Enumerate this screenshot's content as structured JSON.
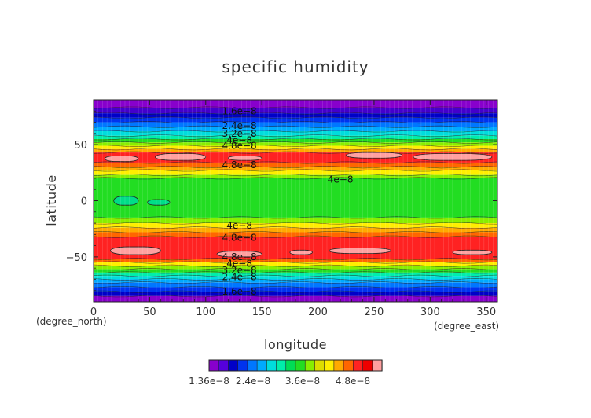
{
  "chart_data": {
    "type": "heatmap",
    "title": "specific humidity",
    "xlabel": "longitude",
    "ylabel": "latitude",
    "x_unit": "(degree_east)",
    "y_unit": "(degree_north)",
    "xlim": [
      0,
      360
    ],
    "ylim": [
      -90,
      90
    ],
    "x_ticks": [
      0,
      50,
      100,
      150,
      200,
      250,
      300,
      350
    ],
    "y_ticks": [
      50,
      0,
      -50
    ],
    "x_tick_labels": [
      "0",
      "50",
      "100",
      "150",
      "200",
      "250",
      "300",
      "350"
    ],
    "y_tick_labels": [
      "50",
      "0",
      "−50"
    ],
    "colorbar": {
      "colors": [
        "#8800cc",
        "#5500dd",
        "#0000c8",
        "#0033ee",
        "#0077ff",
        "#00aaff",
        "#00dddd",
        "#00eeaa",
        "#00dd55",
        "#22dd22",
        "#88ee00",
        "#dddd00",
        "#ffee00",
        "#ffaa00",
        "#ff6600",
        "#ff2222",
        "#ee0000",
        "#ffa0a0"
      ],
      "tick_labels": [
        "1.36e−8",
        "2.4e−8",
        "3.6e−8",
        "4.8e−8"
      ]
    },
    "bands": [
      {
        "lat_top": 90,
        "lat_bottom": 83,
        "color": "#8800cc"
      },
      {
        "lat_top": 83,
        "lat_bottom": 78,
        "color": "#4400cc"
      },
      {
        "lat_top": 78,
        "lat_bottom": 74,
        "color": "#0000c8"
      },
      {
        "lat_top": 74,
        "lat_bottom": 70,
        "color": "#0033ee"
      },
      {
        "lat_top": 70,
        "lat_bottom": 66,
        "color": "#0077ff"
      },
      {
        "lat_top": 66,
        "lat_bottom": 62,
        "color": "#00aaff"
      },
      {
        "lat_top": 62,
        "lat_bottom": 58,
        "color": "#00dddd"
      },
      {
        "lat_top": 58,
        "lat_bottom": 55,
        "color": "#00eeaa"
      },
      {
        "lat_top": 55,
        "lat_bottom": 52,
        "color": "#22dd22"
      },
      {
        "lat_top": 52,
        "lat_bottom": 49,
        "color": "#88ee00"
      },
      {
        "lat_top": 49,
        "lat_bottom": 46,
        "color": "#ffee00"
      },
      {
        "lat_top": 46,
        "lat_bottom": 43,
        "color": "#ffaa00"
      },
      {
        "lat_top": 43,
        "lat_bottom": 34,
        "color": "#ff2222"
      },
      {
        "lat_top": 34,
        "lat_bottom": 30,
        "color": "#ff6600"
      },
      {
        "lat_top": 30,
        "lat_bottom": 27,
        "color": "#ffaa00"
      },
      {
        "lat_top": 27,
        "lat_bottom": 23,
        "color": "#ffee00"
      },
      {
        "lat_top": 23,
        "lat_bottom": 20,
        "color": "#88ee00"
      },
      {
        "lat_top": 20,
        "lat_bottom": -15,
        "color": "#22dd22"
      },
      {
        "lat_top": -15,
        "lat_bottom": -20,
        "color": "#88ee00"
      },
      {
        "lat_top": -20,
        "lat_bottom": -24,
        "color": "#ffee00"
      },
      {
        "lat_top": -24,
        "lat_bottom": -28,
        "color": "#ffaa00"
      },
      {
        "lat_top": -28,
        "lat_bottom": -32,
        "color": "#ff6600"
      },
      {
        "lat_top": -32,
        "lat_bottom": -52,
        "color": "#ff2222"
      },
      {
        "lat_top": -52,
        "lat_bottom": -55,
        "color": "#ff6600"
      },
      {
        "lat_top": -55,
        "lat_bottom": -58,
        "color": "#ffee00"
      },
      {
        "lat_top": -58,
        "lat_bottom": -61,
        "color": "#88ee00"
      },
      {
        "lat_top": -61,
        "lat_bottom": -64,
        "color": "#22dd22"
      },
      {
        "lat_top": -64,
        "lat_bottom": -67,
        "color": "#00eeaa"
      },
      {
        "lat_top": -67,
        "lat_bottom": -70,
        "color": "#00dddd"
      },
      {
        "lat_top": -70,
        "lat_bottom": -73,
        "color": "#00aaff"
      },
      {
        "lat_top": -73,
        "lat_bottom": -77,
        "color": "#0077ff"
      },
      {
        "lat_top": -77,
        "lat_bottom": -81,
        "color": "#0033ee"
      },
      {
        "lat_top": -81,
        "lat_bottom": -85,
        "color": "#0000c8"
      },
      {
        "lat_top": -85,
        "lat_bottom": -90,
        "color": "#8800cc"
      }
    ],
    "patches": [
      {
        "lon_min": 10,
        "lon_max": 40,
        "lat_min": 35,
        "lat_max": 40,
        "color": "#ffa0a0"
      },
      {
        "lon_min": 55,
        "lon_max": 100,
        "lat_min": 36,
        "lat_max": 42,
        "color": "#ffa0a0"
      },
      {
        "lon_min": 120,
        "lon_max": 150,
        "lat_min": 36,
        "lat_max": 40,
        "color": "#ffa0a0"
      },
      {
        "lon_min": 225,
        "lon_max": 275,
        "lat_min": 38,
        "lat_max": 43,
        "color": "#ffa0a0"
      },
      {
        "lon_min": 285,
        "lon_max": 355,
        "lat_min": 36,
        "lat_max": 42,
        "color": "#ffa0a0"
      },
      {
        "lon_min": 15,
        "lon_max": 60,
        "lat_min": -48,
        "lat_max": -41,
        "color": "#ffa0a0"
      },
      {
        "lon_min": 110,
        "lon_max": 150,
        "lat_min": -50,
        "lat_max": -45,
        "color": "#ffa0a0"
      },
      {
        "lon_min": 175,
        "lon_max": 195,
        "lat_min": -48,
        "lat_max": -44,
        "color": "#ffa0a0"
      },
      {
        "lon_min": 210,
        "lon_max": 265,
        "lat_min": -47,
        "lat_max": -42,
        "color": "#ffa0a0"
      },
      {
        "lon_min": 320,
        "lon_max": 355,
        "lat_min": -48,
        "lat_max": -44,
        "color": "#ffa0a0"
      },
      {
        "lon_min": 18,
        "lon_max": 40,
        "lat_min": -4,
        "lat_max": 4,
        "color": "#00dd88"
      },
      {
        "lon_min": 48,
        "lon_max": 68,
        "lat_min": -4,
        "lat_max": 1,
        "color": "#00dd88"
      }
    ],
    "contour_labels": [
      {
        "text": "1.6e−8",
        "lon": 130,
        "lat": 80
      },
      {
        "text": "2.4e−8",
        "lon": 130,
        "lat": 67
      },
      {
        "text": "3.2e−8",
        "lon": 130,
        "lat": 60
      },
      {
        "text": "4e−8",
        "lon": 130,
        "lat": 54
      },
      {
        "text": "4.8e−8",
        "lon": 130,
        "lat": 49
      },
      {
        "text": "4.8e−8",
        "lon": 130,
        "lat": 32
      },
      {
        "text": "4e−8",
        "lon": 220,
        "lat": 19
      },
      {
        "text": "4e−8",
        "lon": 130,
        "lat": -22
      },
      {
        "text": "4.8e−8",
        "lon": 130,
        "lat": -33
      },
      {
        "text": "4.8e−8",
        "lon": 130,
        "lat": -50
      },
      {
        "text": "4e−8",
        "lon": 130,
        "lat": -56
      },
      {
        "text": "3.2e−8",
        "lon": 130,
        "lat": -62
      },
      {
        "text": "2.4e−8",
        "lon": 130,
        "lat": -68
      },
      {
        "text": "1.6e−8",
        "lon": 130,
        "lat": -81
      }
    ]
  }
}
